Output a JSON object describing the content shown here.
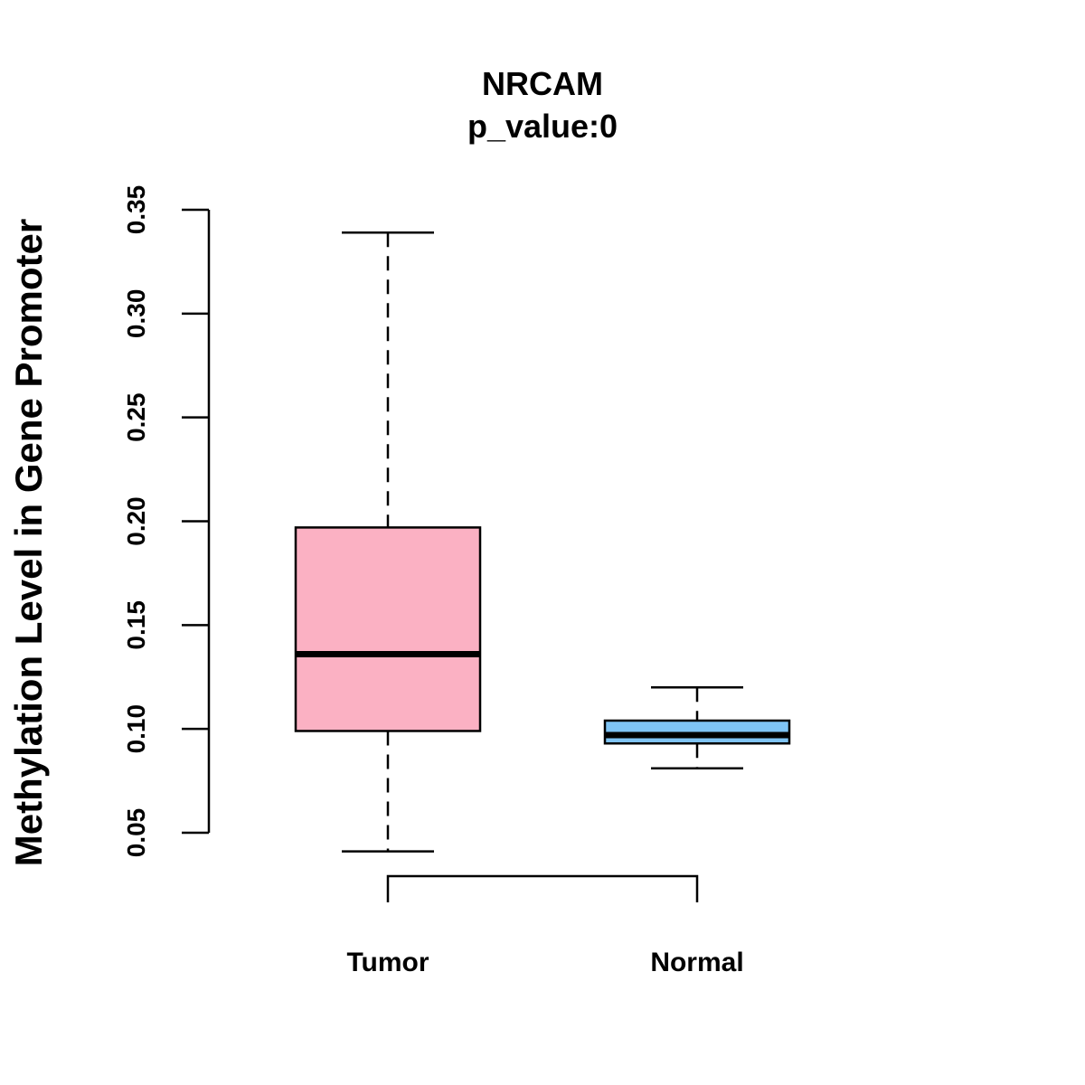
{
  "chart_data": {
    "type": "boxplot",
    "title": "NRCAM",
    "subtitle": "p_value:0",
    "ylabel": "Methylation Level in Gene Promoter",
    "xlabel": "",
    "ylim": [
      0.05,
      0.35
    ],
    "yticks": [
      "0.05",
      "0.10",
      "0.15",
      "0.20",
      "0.25",
      "0.30",
      "0.35"
    ],
    "categories": [
      "Tumor",
      "Normal"
    ],
    "series": [
      {
        "name": "Tumor",
        "color": "#FBB1C3",
        "whisker_low": 0.041,
        "q1": 0.099,
        "median": 0.136,
        "q3": 0.197,
        "whisker_high": 0.339
      },
      {
        "name": "Normal",
        "color": "#7FC4F4",
        "whisker_low": 0.081,
        "q1": 0.093,
        "median": 0.097,
        "q3": 0.104,
        "whisker_high": 0.12
      }
    ],
    "comparison_bracket": [
      "Tumor",
      "Normal"
    ],
    "grid": false
  }
}
